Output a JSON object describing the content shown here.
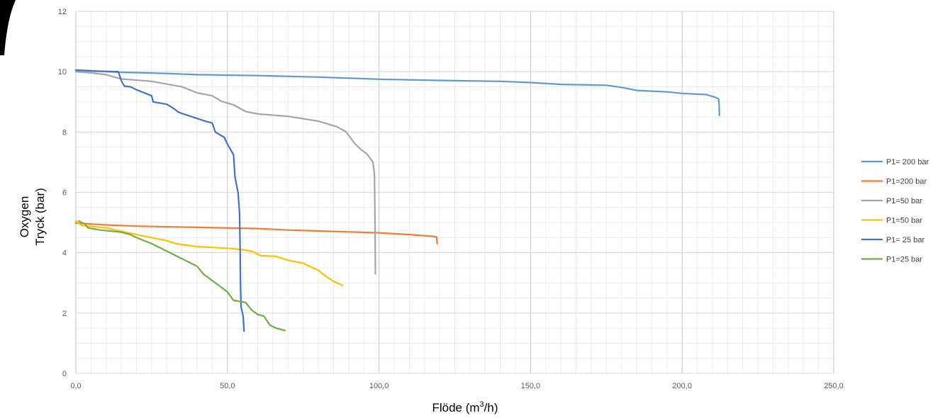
{
  "chart_data": {
    "type": "line",
    "title": "",
    "xlabel": "Flöde (m³/h)",
    "xlabel_parts": {
      "pre": "Flöde (m",
      "sup": "3",
      "post": "/h)"
    },
    "ylabel": [
      "Oxygen",
      "Tryck (bar)"
    ],
    "xlim": [
      0,
      250
    ],
    "ylim": [
      0,
      12
    ],
    "x_ticks": [
      0,
      50,
      100,
      150,
      200,
      250
    ],
    "x_tick_labels": [
      "0,0",
      "50,0",
      "100,0",
      "150,0",
      "200,0",
      "250,0"
    ],
    "y_ticks": [
      0,
      2,
      4,
      6,
      8,
      10,
      12
    ],
    "y_tick_labels": [
      "0",
      "2",
      "4",
      "6",
      "8",
      "10",
      "12"
    ],
    "grid": true,
    "legend_position": "right",
    "series": [
      {
        "name": "P1= 200 bar",
        "color": "#5b9bd5",
        "points": [
          [
            0,
            10.05
          ],
          [
            5,
            10.02
          ],
          [
            15,
            9.98
          ],
          [
            30,
            9.94
          ],
          [
            40,
            9.9
          ],
          [
            60,
            9.87
          ],
          [
            80,
            9.82
          ],
          [
            100,
            9.75
          ],
          [
            120,
            9.71
          ],
          [
            140,
            9.68
          ],
          [
            150,
            9.64
          ],
          [
            160,
            9.58
          ],
          [
            175,
            9.55
          ],
          [
            180,
            9.48
          ],
          [
            185,
            9.38
          ],
          [
            195,
            9.33
          ],
          [
            200,
            9.28
          ],
          [
            208,
            9.24
          ],
          [
            211,
            9.15
          ],
          [
            212,
            9.1
          ],
          [
            212.2,
            8.9
          ],
          [
            212.3,
            8.55
          ]
        ]
      },
      {
        "name": "P1=200 bar",
        "color": "#ed7d31",
        "points": [
          [
            0,
            4.98
          ],
          [
            5,
            4.95
          ],
          [
            10,
            4.92
          ],
          [
            20,
            4.88
          ],
          [
            40,
            4.84
          ],
          [
            60,
            4.8
          ],
          [
            70,
            4.75
          ],
          [
            80,
            4.72
          ],
          [
            100,
            4.66
          ],
          [
            110,
            4.6
          ],
          [
            118,
            4.54
          ],
          [
            119,
            4.52
          ],
          [
            119.2,
            4.3
          ]
        ]
      },
      {
        "name": "P1=50 bar",
        "color": "#a5a5a5",
        "points": [
          [
            0,
            10
          ],
          [
            5,
            9.96
          ],
          [
            10,
            9.9
          ],
          [
            15,
            9.76
          ],
          [
            25,
            9.68
          ],
          [
            35,
            9.5
          ],
          [
            40,
            9.3
          ],
          [
            45,
            9.2
          ],
          [
            48,
            9.02
          ],
          [
            52,
            8.9
          ],
          [
            56,
            8.68
          ],
          [
            60,
            8.6
          ],
          [
            70,
            8.52
          ],
          [
            80,
            8.36
          ],
          [
            86,
            8.18
          ],
          [
            89,
            8.02
          ],
          [
            92,
            7.62
          ],
          [
            94,
            7.42
          ],
          [
            96,
            7.28
          ],
          [
            98,
            7.0
          ],
          [
            98.5,
            6.6
          ],
          [
            98.7,
            5.0
          ],
          [
            98.8,
            3.3
          ]
        ]
      },
      {
        "name": "P1=50 bar",
        "color": "#ffc000",
        "points": [
          [
            0,
            5.05
          ],
          [
            2,
            4.9
          ],
          [
            10,
            4.82
          ],
          [
            20,
            4.6
          ],
          [
            25,
            4.5
          ],
          [
            30,
            4.4
          ],
          [
            33,
            4.3
          ],
          [
            40,
            4.2
          ],
          [
            50,
            4.15
          ],
          [
            55,
            4.1
          ],
          [
            58,
            4.05
          ],
          [
            61,
            3.9
          ],
          [
            66,
            3.88
          ],
          [
            70,
            3.75
          ],
          [
            75,
            3.65
          ],
          [
            80,
            3.42
          ],
          [
            82,
            3.25
          ],
          [
            85,
            3.05
          ],
          [
            88,
            2.92
          ]
        ]
      },
      {
        "name": "P1= 25 bar",
        "color": "#4472c4",
        "points": [
          [
            0,
            10.05
          ],
          [
            7,
            10.02
          ],
          [
            14,
            10.0
          ],
          [
            15,
            9.7
          ],
          [
            16,
            9.52
          ],
          [
            18,
            9.5
          ],
          [
            20,
            9.4
          ],
          [
            25,
            9.2
          ],
          [
            25.5,
            9.0
          ],
          [
            30,
            8.92
          ],
          [
            32,
            8.8
          ],
          [
            34,
            8.65
          ],
          [
            40,
            8.45
          ],
          [
            43,
            8.35
          ],
          [
            45,
            8.3
          ],
          [
            46,
            8.0
          ],
          [
            49,
            7.82
          ],
          [
            50,
            7.6
          ],
          [
            52,
            7.25
          ],
          [
            52.5,
            6.5
          ],
          [
            53.5,
            6.0
          ],
          [
            54,
            5.3
          ],
          [
            54.2,
            4.0
          ],
          [
            54.3,
            3.0
          ],
          [
            54.5,
            2.2
          ],
          [
            55.2,
            1.9
          ],
          [
            55.5,
            1.4
          ]
        ]
      },
      {
        "name": "P1=25 bar",
        "color": "#70ad47",
        "points": [
          [
            1,
            5.05
          ],
          [
            3,
            4.95
          ],
          [
            4,
            4.82
          ],
          [
            8,
            4.75
          ],
          [
            15,
            4.68
          ],
          [
            18,
            4.6
          ],
          [
            20,
            4.5
          ],
          [
            25,
            4.3
          ],
          [
            27,
            4.2
          ],
          [
            30,
            4.05
          ],
          [
            35,
            3.8
          ],
          [
            38,
            3.65
          ],
          [
            40,
            3.55
          ],
          [
            42,
            3.3
          ],
          [
            46,
            3.0
          ],
          [
            50,
            2.7
          ],
          [
            52,
            2.42
          ],
          [
            56,
            2.35
          ],
          [
            58,
            2.1
          ],
          [
            60,
            1.95
          ],
          [
            62,
            1.9
          ],
          [
            64,
            1.6
          ],
          [
            66,
            1.5
          ],
          [
            69,
            1.42
          ]
        ]
      }
    ]
  }
}
